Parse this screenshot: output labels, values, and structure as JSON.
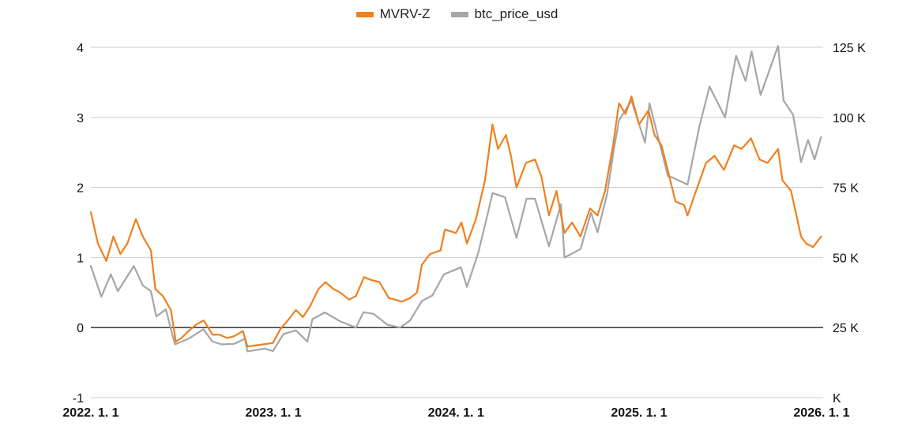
{
  "chart_data": {
    "type": "line",
    "title": "",
    "xlabel": "",
    "ylabel_left": "",
    "ylabel_right": "",
    "x_ticks": [
      "2022. 1. 1",
      "2023. 1. 1",
      "2024. 1. 1",
      "2025. 1. 1",
      "2026. 1. 1"
    ],
    "xlim": [
      "2022-01-01",
      "2026-01-01"
    ],
    "y_left": {
      "ylim": [
        -1,
        4
      ],
      "ticks": [
        "-1",
        "0",
        "1",
        "2",
        "3",
        "4"
      ]
    },
    "y_right": {
      "ylim": [
        0,
        125000
      ],
      "ticks": [
        "K",
        "25 K",
        "50 K",
        "75 K",
        "100 K",
        "125 K"
      ]
    },
    "grid": true,
    "legend_position": "top-center",
    "series": [
      {
        "name": "MVRV-Z",
        "axis": "left",
        "color": "#F07F1E",
        "points": [
          [
            "2022-01-01",
            1.65
          ],
          [
            "2022-01-15",
            1.2
          ],
          [
            "2022-02-01",
            0.95
          ],
          [
            "2022-02-15",
            1.3
          ],
          [
            "2022-03-01",
            1.05
          ],
          [
            "2022-03-15",
            1.2
          ],
          [
            "2022-04-01",
            1.55
          ],
          [
            "2022-04-15",
            1.3
          ],
          [
            "2022-05-01",
            1.1
          ],
          [
            "2022-05-10",
            0.55
          ],
          [
            "2022-05-25",
            0.45
          ],
          [
            "2022-06-10",
            0.25
          ],
          [
            "2022-06-20",
            -0.2
          ],
          [
            "2022-07-01",
            -0.15
          ],
          [
            "2022-07-15",
            -0.05
          ],
          [
            "2022-08-01",
            0.05
          ],
          [
            "2022-08-15",
            0.1
          ],
          [
            "2022-09-01",
            -0.1
          ],
          [
            "2022-09-15",
            -0.1
          ],
          [
            "2022-10-01",
            -0.15
          ],
          [
            "2022-10-15",
            -0.12
          ],
          [
            "2022-11-01",
            -0.05
          ],
          [
            "2022-11-10",
            -0.27
          ],
          [
            "2022-12-01",
            -0.25
          ],
          [
            "2022-12-31",
            -0.22
          ],
          [
            "2023-01-15",
            -0.02
          ],
          [
            "2023-02-01",
            0.12
          ],
          [
            "2023-02-15",
            0.25
          ],
          [
            "2023-03-01",
            0.15
          ],
          [
            "2023-03-15",
            0.3
          ],
          [
            "2023-04-01",
            0.55
          ],
          [
            "2023-04-15",
            0.65
          ],
          [
            "2023-05-01",
            0.55
          ],
          [
            "2023-05-15",
            0.5
          ],
          [
            "2023-06-01",
            0.4
          ],
          [
            "2023-06-15",
            0.45
          ],
          [
            "2023-07-01",
            0.72
          ],
          [
            "2023-07-15",
            0.68
          ],
          [
            "2023-08-01",
            0.65
          ],
          [
            "2023-08-20",
            0.42
          ],
          [
            "2023-09-01",
            0.4
          ],
          [
            "2023-09-15",
            0.37
          ],
          [
            "2023-10-01",
            0.42
          ],
          [
            "2023-10-15",
            0.5
          ],
          [
            "2023-10-25",
            0.9
          ],
          [
            "2023-11-10",
            1.05
          ],
          [
            "2023-12-01",
            1.1
          ],
          [
            "2023-12-10",
            1.4
          ],
          [
            "2024-01-01",
            1.35
          ],
          [
            "2024-01-12",
            1.5
          ],
          [
            "2024-01-23",
            1.2
          ],
          [
            "2024-02-10",
            1.55
          ],
          [
            "2024-02-28",
            2.1
          ],
          [
            "2024-03-14",
            2.9
          ],
          [
            "2024-03-25",
            2.55
          ],
          [
            "2024-04-10",
            2.75
          ],
          [
            "2024-04-20",
            2.45
          ],
          [
            "2024-05-01",
            2.0
          ],
          [
            "2024-05-20",
            2.35
          ],
          [
            "2024-06-07",
            2.4
          ],
          [
            "2024-06-20",
            2.15
          ],
          [
            "2024-07-05",
            1.6
          ],
          [
            "2024-07-20",
            1.95
          ],
          [
            "2024-08-05",
            1.35
          ],
          [
            "2024-08-20",
            1.5
          ],
          [
            "2024-09-06",
            1.3
          ],
          [
            "2024-09-25",
            1.7
          ],
          [
            "2024-10-10",
            1.6
          ],
          [
            "2024-10-25",
            1.95
          ],
          [
            "2024-11-10",
            2.6
          ],
          [
            "2024-11-22",
            3.2
          ],
          [
            "2024-12-05",
            3.05
          ],
          [
            "2024-12-17",
            3.3
          ],
          [
            "2025-01-01",
            2.9
          ],
          [
            "2025-01-20",
            3.1
          ],
          [
            "2025-02-01",
            2.75
          ],
          [
            "2025-02-15",
            2.6
          ],
          [
            "2025-03-01",
            2.2
          ],
          [
            "2025-03-15",
            1.8
          ],
          [
            "2025-04-01",
            1.75
          ],
          [
            "2025-04-08",
            1.6
          ],
          [
            "2025-04-25",
            1.95
          ],
          [
            "2025-05-15",
            2.35
          ],
          [
            "2025-06-01",
            2.45
          ],
          [
            "2025-06-20",
            2.25
          ],
          [
            "2025-07-10",
            2.6
          ],
          [
            "2025-07-25",
            2.55
          ],
          [
            "2025-08-13",
            2.7
          ],
          [
            "2025-08-30",
            2.4
          ],
          [
            "2025-09-15",
            2.35
          ],
          [
            "2025-10-06",
            2.55
          ],
          [
            "2025-10-15",
            2.1
          ],
          [
            "2025-11-01",
            1.95
          ],
          [
            "2025-11-21",
            1.3
          ],
          [
            "2025-12-01",
            1.2
          ],
          [
            "2025-12-15",
            1.15
          ],
          [
            "2025-12-31",
            1.3
          ]
        ]
      },
      {
        "name": "btc_price_usd",
        "axis": "right",
        "color": "#A6A6A6",
        "points": [
          [
            "2022-01-01",
            47000
          ],
          [
            "2022-01-22",
            36000
          ],
          [
            "2022-02-10",
            44000
          ],
          [
            "2022-02-24",
            38000
          ],
          [
            "2022-03-28",
            47000
          ],
          [
            "2022-04-15",
            40000
          ],
          [
            "2022-05-01",
            38000
          ],
          [
            "2022-05-12",
            29000
          ],
          [
            "2022-05-31",
            31500
          ],
          [
            "2022-06-13",
            22500
          ],
          [
            "2022-06-18",
            19000
          ],
          [
            "2022-07-15",
            21000
          ],
          [
            "2022-08-14",
            24400
          ],
          [
            "2022-09-01",
            20000
          ],
          [
            "2022-09-20",
            19000
          ],
          [
            "2022-10-15",
            19200
          ],
          [
            "2022-11-05",
            21000
          ],
          [
            "2022-11-10",
            16500
          ],
          [
            "2022-12-15",
            17500
          ],
          [
            "2022-12-31",
            16600
          ],
          [
            "2023-01-21",
            22700
          ],
          [
            "2023-02-15",
            24000
          ],
          [
            "2023-03-10",
            20000
          ],
          [
            "2023-03-20",
            28000
          ],
          [
            "2023-04-14",
            30400
          ],
          [
            "2023-05-15",
            27200
          ],
          [
            "2023-06-15",
            25000
          ],
          [
            "2023-06-30",
            30500
          ],
          [
            "2023-07-20",
            29900
          ],
          [
            "2023-08-17",
            26000
          ],
          [
            "2023-09-11",
            25000
          ],
          [
            "2023-10-01",
            27500
          ],
          [
            "2023-10-25",
            34500
          ],
          [
            "2023-11-15",
            36500
          ],
          [
            "2023-12-08",
            44000
          ],
          [
            "2024-01-11",
            46500
          ],
          [
            "2024-01-23",
            39500
          ],
          [
            "2024-02-15",
            52000
          ],
          [
            "2024-03-05",
            66000
          ],
          [
            "2024-03-14",
            73000
          ],
          [
            "2024-04-08",
            71500
          ],
          [
            "2024-05-01",
            57000
          ],
          [
            "2024-05-21",
            71000
          ],
          [
            "2024-06-07",
            71000
          ],
          [
            "2024-07-05",
            54000
          ],
          [
            "2024-07-29",
            69000
          ],
          [
            "2024-08-05",
            50000
          ],
          [
            "2024-09-06",
            53000
          ],
          [
            "2024-09-27",
            66000
          ],
          [
            "2024-10-10",
            59000
          ],
          [
            "2024-10-29",
            72500
          ],
          [
            "2024-11-12",
            89000
          ],
          [
            "2024-11-22",
            99000
          ],
          [
            "2024-12-17",
            106000
          ],
          [
            "2025-01-13",
            91000
          ],
          [
            "2025-01-22",
            105000
          ],
          [
            "2025-02-28",
            79000
          ],
          [
            "2025-03-10",
            78500
          ],
          [
            "2025-04-08",
            76000
          ],
          [
            "2025-05-02",
            97000
          ],
          [
            "2025-05-22",
            111000
          ],
          [
            "2025-06-22",
            100000
          ],
          [
            "2025-07-14",
            122000
          ],
          [
            "2025-08-02",
            113000
          ],
          [
            "2025-08-14",
            123500
          ],
          [
            "2025-09-01",
            108000
          ],
          [
            "2025-10-06",
            125500
          ],
          [
            "2025-10-17",
            106000
          ],
          [
            "2025-11-05",
            101000
          ],
          [
            "2025-11-21",
            84000
          ],
          [
            "2025-12-05",
            92000
          ],
          [
            "2025-12-18",
            85000
          ],
          [
            "2025-12-31",
            93000
          ]
        ]
      }
    ]
  },
  "colors": {
    "grid": "#cccccc",
    "zero_line": "#222222",
    "mvrv": "#F07F1E",
    "price": "#A6A6A6"
  }
}
